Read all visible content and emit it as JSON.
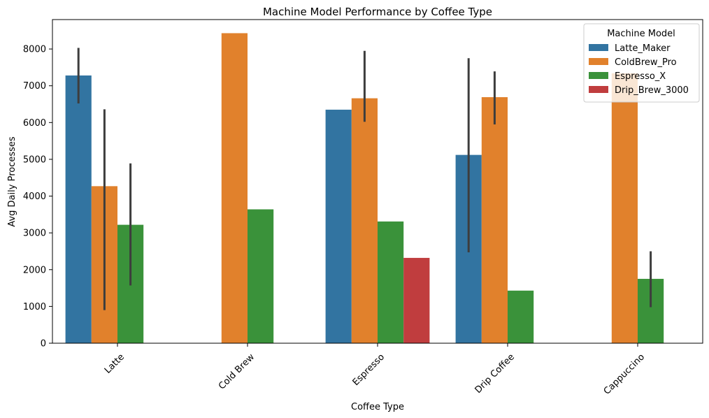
{
  "chart_data": {
    "type": "bar",
    "title": "Machine Model Performance by Coffee Type",
    "xlabel": "Coffee Type",
    "ylabel": "Avg Daily Processes",
    "ylim": [
      0,
      8800
    ],
    "yticks": [
      0,
      1000,
      2000,
      3000,
      4000,
      5000,
      6000,
      7000,
      8000
    ],
    "categories": [
      "Latte",
      "Cold Brew",
      "Espresso",
      "Drip Coffee",
      "Cappuccino"
    ],
    "legend": {
      "title": "Machine Model",
      "placement": "top-right"
    },
    "grid": false,
    "series": [
      {
        "name": "Latte_Maker",
        "color": "#3274a1",
        "values": [
          7280,
          null,
          6350,
          5120,
          null
        ],
        "error_low": [
          6520,
          null,
          null,
          2470,
          null
        ],
        "error_high": [
          8030,
          null,
          null,
          7750,
          null
        ]
      },
      {
        "name": "ColdBrew_Pro",
        "color": "#e1812c",
        "values": [
          4270,
          8430,
          6660,
          6690,
          7340
        ],
        "error_low": [
          900,
          null,
          6020,
          5950,
          null
        ],
        "error_high": [
          6360,
          null,
          7950,
          7390,
          null
        ]
      },
      {
        "name": "Espresso_X",
        "color": "#3a923a",
        "values": [
          3220,
          3640,
          3310,
          1430,
          1750
        ],
        "error_low": [
          1570,
          null,
          null,
          null,
          980
        ],
        "error_high": [
          4890,
          null,
          null,
          null,
          2500
        ]
      },
      {
        "name": "Drip_Brew_3000",
        "color": "#c03d3e",
        "values": [
          null,
          null,
          2320,
          null,
          null
        ],
        "error_low": [
          null,
          null,
          null,
          null,
          null
        ],
        "error_high": [
          null,
          null,
          null,
          null,
          null
        ]
      }
    ]
  }
}
